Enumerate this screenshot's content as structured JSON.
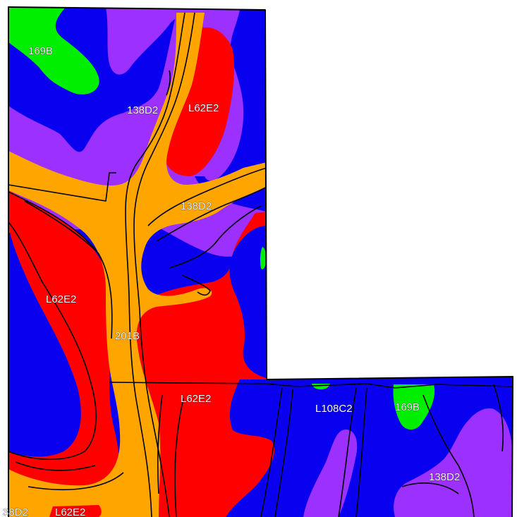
{
  "map": {
    "colors": {
      "blue": "#0a00f0",
      "purple": "#9b30ff",
      "green": "#00ee00",
      "red": "#ff0000",
      "orange": "#ffa500",
      "outline": "#000000"
    },
    "labels": {
      "top_left_green": "169B",
      "upper_purple": "138D2",
      "upper_red": "L62E2",
      "middle_purple": "138D2",
      "left_red": "L62E2",
      "orange_channel": "201B",
      "lower_red": "L62E2",
      "lower_right_blue": "L108C2",
      "lower_right_green": "169B",
      "lower_right_purple": "138D2",
      "bottom_left_a": "38D2",
      "bottom_left_b": "L62E2"
    }
  }
}
